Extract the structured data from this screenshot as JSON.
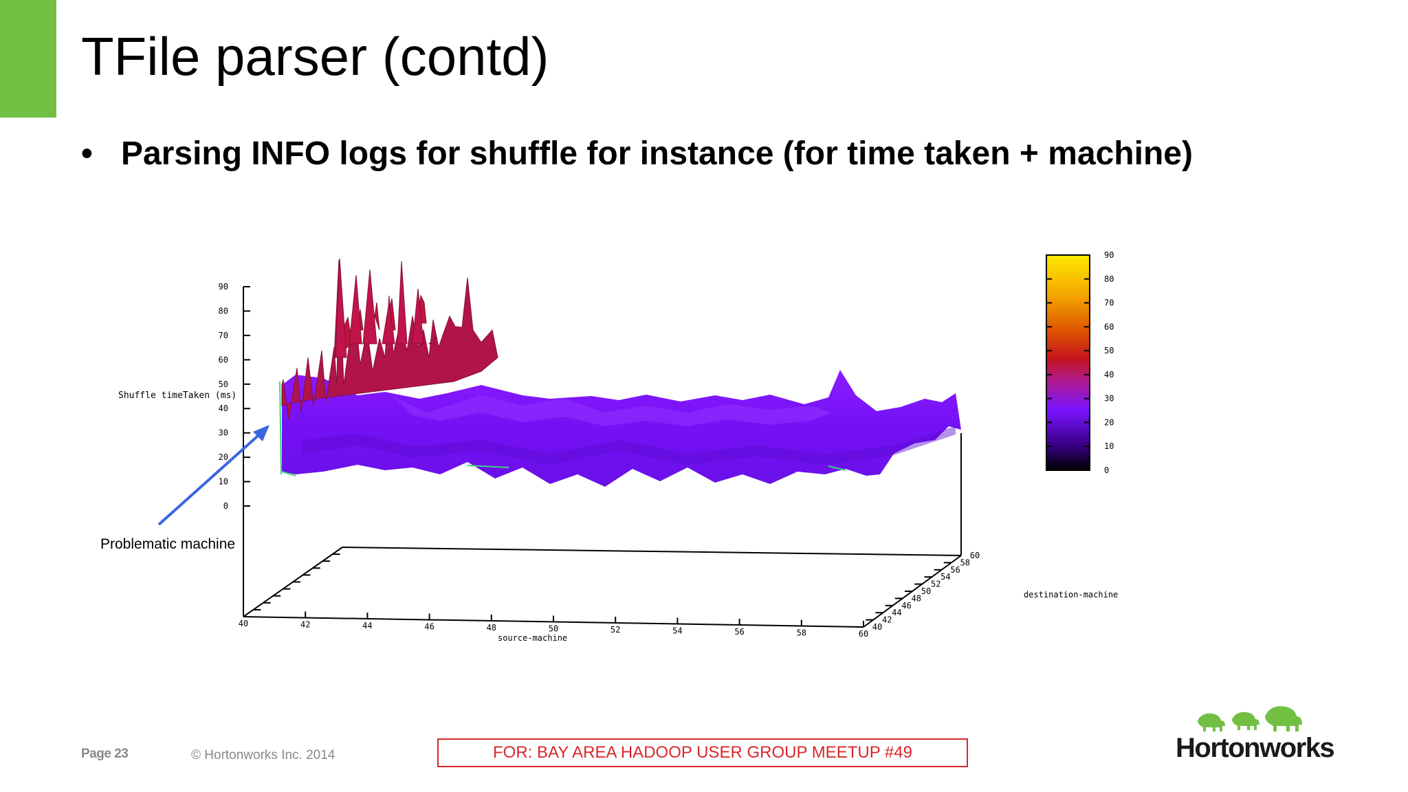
{
  "slide": {
    "title": "TFile parser (contd)",
    "bullet_symbol": "•",
    "bullet": "Parsing INFO logs for shuffle for instance (for time taken + machine)"
  },
  "chart": {
    "zlabel": "Shuffle timeTaken (ms)",
    "xlabel": "source-machine",
    "ylabel": "destination-machine",
    "annotation": "Problematic machine",
    "z_ticks": [
      "90",
      "80",
      "70",
      "60",
      "50",
      "40",
      "30",
      "20",
      "10",
      "0"
    ],
    "x_ticks": [
      "40",
      "42",
      "44",
      "46",
      "48",
      "50",
      "52",
      "54",
      "56",
      "58",
      "60"
    ],
    "y_ticks": [
      "40",
      "42",
      "44",
      "46",
      "48",
      "50",
      "52",
      "54",
      "56",
      "58",
      "60"
    ],
    "colorbar_ticks": [
      "90",
      "80",
      "70",
      "60",
      "50",
      "40",
      "30",
      "20",
      "10",
      "0"
    ]
  },
  "chart_data": {
    "type": "surface",
    "x_axis": {
      "label": "source-machine",
      "range": [
        40,
        60
      ]
    },
    "y_axis": {
      "label": "destination-machine",
      "range": [
        40,
        60
      ]
    },
    "z_axis": {
      "label": "Shuffle timeTaken (ms)",
      "range": [
        0,
        90
      ]
    },
    "colormap_range": [
      0,
      90
    ],
    "annotation": "Problematic machine"
  },
  "footer": {
    "page": "Page 23",
    "copyright": "© Hortonworks Inc. 2014",
    "meetup": "FOR: BAY AREA HADOOP USER GROUP MEETUP #49",
    "logo": "Hortonworks"
  },
  "colors": {
    "accent": "#72bf44",
    "surface_main": "#7a14ff",
    "surface_high": "#b0144a",
    "meetup_red": "#d9262c"
  }
}
